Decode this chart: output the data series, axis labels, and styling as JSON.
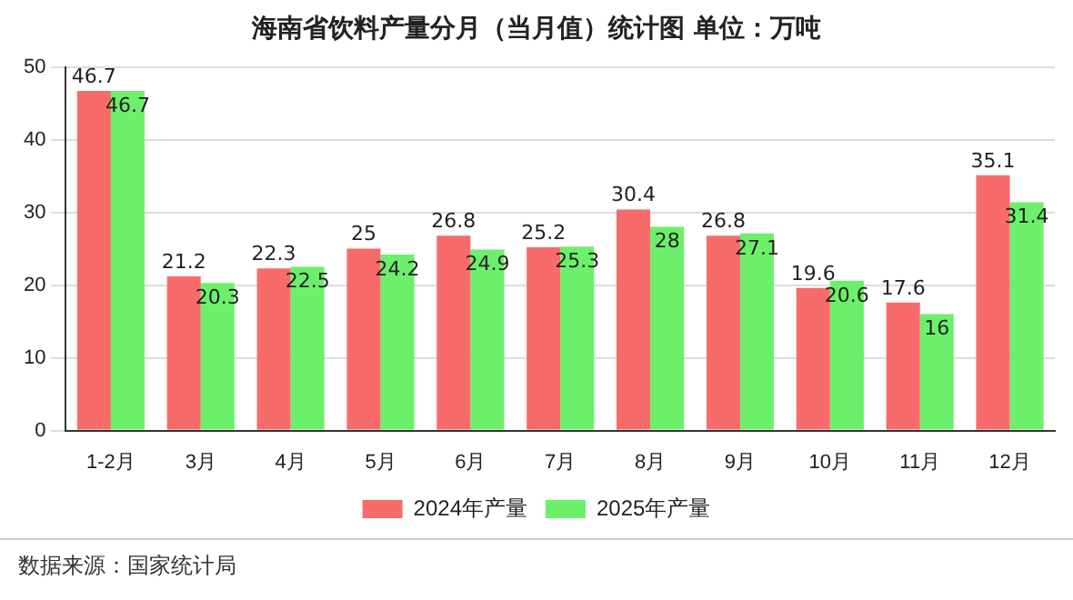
{
  "chart_data": {
    "type": "bar",
    "title": "海南省饮料产量分月（当月值）统计图 单位：万吨",
    "categories": [
      "1-2月",
      "3月",
      "4月",
      "5月",
      "6月",
      "7月",
      "8月",
      "9月",
      "10月",
      "11月",
      "12月"
    ],
    "series": [
      {
        "name": "2024年产量",
        "color": "#f76b6b",
        "values": [
          46.7,
          21.2,
          22.3,
          25,
          26.8,
          25.2,
          30.4,
          26.8,
          19.6,
          17.6,
          35.1
        ]
      },
      {
        "name": "2025年产量",
        "color": "#6cf06c",
        "values": [
          46.7,
          20.3,
          22.5,
          24.2,
          24.9,
          25.3,
          28,
          27.1,
          20.6,
          16,
          31.4
        ]
      }
    ],
    "ylim": [
      0,
      50
    ],
    "yticks": [
      0,
      10,
      20,
      30,
      40,
      50
    ],
    "grid": "y",
    "legend": "bottom",
    "data_labels": true,
    "annotations": [
      "数据来源：国家统计局"
    ]
  }
}
